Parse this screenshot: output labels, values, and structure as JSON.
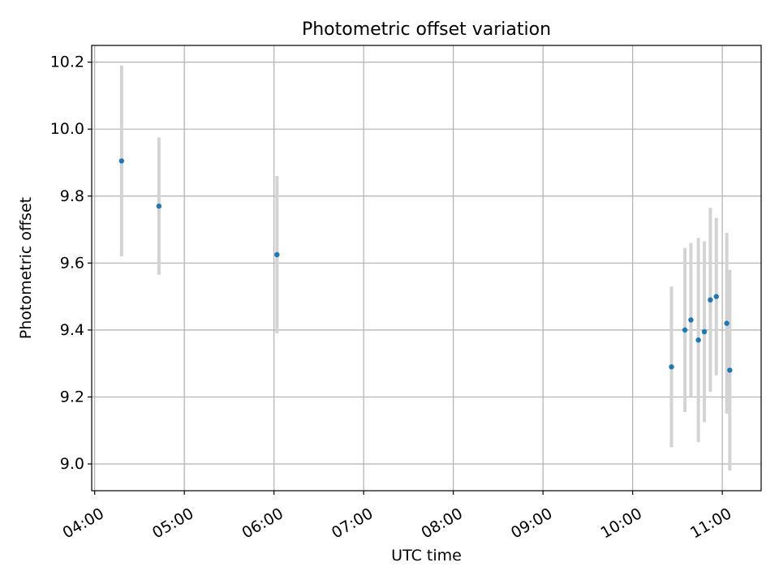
{
  "chart_data": {
    "type": "scatter",
    "title": "Photometric offset variation",
    "xlabel": "UTC time",
    "ylabel": "Photometric offset",
    "x_unit": "hours (UTC)",
    "xlim": [
      "03:58",
      "11:26"
    ],
    "ylim": [
      8.92,
      10.25
    ],
    "xticks": [
      "04:00",
      "05:00",
      "06:00",
      "07:00",
      "08:00",
      "09:00",
      "10:00",
      "11:00"
    ],
    "yticks": [
      9.0,
      9.2,
      9.4,
      9.6,
      9.8,
      10.0,
      10.2
    ],
    "ytick_labels": [
      "9.0",
      "9.2",
      "9.4",
      "9.6",
      "9.8",
      "10.0",
      "10.2"
    ],
    "grid": true,
    "xtick_rotation_deg": 30,
    "series": [
      {
        "marker_color": "#1f77b4",
        "errorbar_color": "#d3d3d3",
        "points": [
          {
            "x": "04:18",
            "y": 9.905,
            "err": 0.285
          },
          {
            "x": "04:43",
            "y": 9.77,
            "err": 0.205
          },
          {
            "x": "06:02",
            "y": 9.625,
            "err": 0.235
          },
          {
            "x": "10:26",
            "y": 9.29,
            "err": 0.24
          },
          {
            "x": "10:35",
            "y": 9.4,
            "err": 0.245
          },
          {
            "x": "10:39",
            "y": 9.43,
            "err": 0.23
          },
          {
            "x": "10:44",
            "y": 9.37,
            "err": 0.305
          },
          {
            "x": "10:48",
            "y": 9.395,
            "err": 0.27
          },
          {
            "x": "10:52",
            "y": 9.49,
            "err": 0.275
          },
          {
            "x": "10:56",
            "y": 9.5,
            "err": 0.235
          },
          {
            "x": "11:03",
            "y": 9.42,
            "err": 0.27
          },
          {
            "x": "11:05",
            "y": 9.28,
            "err": 0.3
          }
        ]
      }
    ]
  }
}
